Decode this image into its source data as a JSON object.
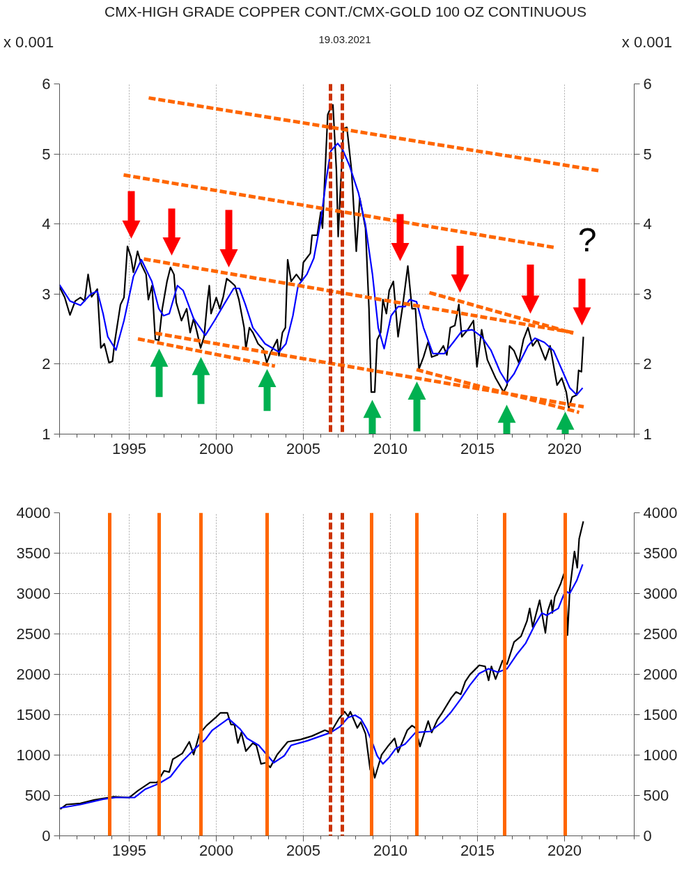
{
  "chart_data": [
    {
      "type": "line",
      "title": "CMX-HIGH GRADE COPPER CONT./CMX-GOLD 100 OZ CONTINUOUS",
      "subtitle": "19.03.2021",
      "ylabel": "x 0.001",
      "y2label": "x 0.001",
      "xlim": [
        1991,
        2024
      ],
      "xticks": [
        1995,
        2000,
        2005,
        2010,
        2015,
        2020
      ],
      "ylim": [
        1,
        6
      ],
      "yticks": [
        1,
        2,
        3,
        4,
        5,
        6
      ],
      "y2lim": [
        1,
        6
      ],
      "y2ticks": [
        1,
        2,
        3,
        4,
        5,
        6
      ],
      "grid": true,
      "series": [
        {
          "color": "#000000",
          "x": [
            1991.0,
            1991.3,
            1991.6,
            1991.9,
            1992.2,
            1992.44,
            1992.64,
            1992.84,
            1993.17,
            1993.37,
            1993.57,
            1993.84,
            1994.04,
            1994.17,
            1994.5,
            1994.7,
            1994.9,
            1995.1,
            1995.24,
            1995.48,
            1995.7,
            1995.97,
            1996.1,
            1996.31,
            1996.5,
            1996.7,
            1996.9,
            1997.17,
            1997.37,
            1997.57,
            1997.7,
            1998.0,
            1998.3,
            1998.5,
            1998.7,
            1998.9,
            1999.1,
            1999.3,
            1999.5,
            1999.6,
            1999.7,
            2000.0,
            2000.2,
            2000.4,
            2000.6,
            2000.8,
            2001.07,
            2001.3,
            2001.6,
            2001.7,
            2001.9,
            2002.1,
            2002.4,
            2002.7,
            2002.9,
            2003.1,
            2003.5,
            2003.6,
            2003.8,
            2003.97,
            2004.1,
            2004.3,
            2004.6,
            2004.9,
            2005.0,
            2005.4,
            2005.5,
            2005.8,
            2006.0,
            2006.1,
            2006.4,
            2006.5,
            2006.7,
            2006.9,
            2007.0,
            2007.3,
            2007.5,
            2007.77,
            2008.04,
            2008.24,
            2008.44,
            2008.57,
            2008.77,
            2008.9,
            2009.1,
            2009.24,
            2009.44,
            2009.57,
            2009.77,
            2009.93,
            2010.17,
            2010.44,
            2010.7,
            2011.0,
            2011.24,
            2011.44,
            2011.64,
            2011.9,
            2012.17,
            2012.37,
            2012.7,
            2013.04,
            2013.24,
            2013.44,
            2013.7,
            2013.93,
            2014.1,
            2014.44,
            2014.77,
            2014.97,
            2015.24,
            2015.57,
            2016.04,
            2016.5,
            2016.7,
            2016.84,
            2017.1,
            2017.37,
            2017.64,
            2017.9,
            2018.17,
            2018.44,
            2018.9,
            2019.17,
            2019.57,
            2019.84,
            2020.1,
            2020.24,
            2020.44,
            2020.7,
            2020.81,
            2020.97,
            2021.08
          ],
          "values": [
            3.1,
            2.95,
            2.7,
            2.9,
            2.95,
            2.9,
            3.28,
            2.96,
            3.07,
            2.23,
            2.29,
            2.02,
            2.04,
            2.32,
            2.85,
            2.95,
            3.68,
            3.53,
            3.31,
            3.61,
            3.42,
            3.28,
            2.92,
            3.12,
            2.35,
            2.34,
            2.79,
            3.18,
            3.38,
            3.28,
            2.88,
            2.62,
            2.79,
            2.45,
            2.65,
            2.45,
            2.23,
            2.39,
            2.92,
            3.12,
            2.72,
            2.95,
            2.79,
            2.96,
            3.22,
            3.18,
            3.12,
            2.92,
            2.52,
            2.22,
            2.52,
            2.45,
            2.29,
            2.22,
            2.02,
            2.15,
            2.35,
            2.12,
            2.45,
            2.52,
            3.49,
            3.18,
            3.28,
            3.18,
            3.45,
            3.58,
            3.84,
            3.84,
            4.17,
            3.94,
            5.56,
            5.62,
            5.7,
            4.76,
            3.82,
            5.36,
            5.38,
            4.76,
            3.61,
            4.37,
            4.11,
            3.94,
            2.79,
            1.6,
            1.6,
            2.35,
            2.45,
            2.92,
            2.72,
            3.05,
            3.18,
            2.39,
            2.82,
            3.4,
            2.79,
            2.79,
            1.93,
            2.1,
            2.32,
            2.1,
            2.13,
            2.26,
            2.13,
            2.52,
            2.55,
            2.85,
            2.39,
            2.49,
            2.62,
            1.96,
            2.49,
            2.06,
            1.8,
            1.6,
            1.7,
            2.26,
            2.19,
            2.02,
            2.35,
            2.52,
            2.26,
            2.35,
            2.06,
            2.26,
            1.7,
            1.8,
            1.6,
            1.37,
            1.53,
            1.56,
            1.91,
            1.89,
            2.39
          ]
        },
        {
          "color": "#0000ff",
          "x": [
            1991.0,
            1991.6,
            1992.2,
            1992.8,
            1993.17,
            1993.5,
            1993.77,
            1994.24,
            1994.7,
            1995.24,
            1995.7,
            1996.3,
            1996.7,
            1996.97,
            1997.3,
            1997.77,
            1998.1,
            1998.7,
            1999.37,
            1999.9,
            2000.44,
            2001.0,
            2001.33,
            2001.67,
            2002.1,
            2002.8,
            2003.6,
            2004.0,
            2004.4,
            2004.7,
            2005.2,
            2005.6,
            2006.0,
            2006.3,
            2006.57,
            2006.97,
            2007.24,
            2007.64,
            2008.17,
            2008.57,
            2008.97,
            2009.3,
            2009.64,
            2010.04,
            2010.44,
            2010.84,
            2011.1,
            2011.5,
            2011.9,
            2012.44,
            2013.1,
            2013.64,
            2014.1,
            2014.7,
            2015.24,
            2015.77,
            2016.3,
            2016.7,
            2017.1,
            2017.5,
            2017.9,
            2018.3,
            2018.84,
            2019.37,
            2019.9,
            2020.3,
            2020.7,
            2021.04
          ],
          "values": [
            3.13,
            2.9,
            2.84,
            3.0,
            3.04,
            2.72,
            2.39,
            2.2,
            2.62,
            3.25,
            3.49,
            3.18,
            2.79,
            2.69,
            2.72,
            3.12,
            3.05,
            2.65,
            2.41,
            2.62,
            2.85,
            3.08,
            3.08,
            2.85,
            2.52,
            2.29,
            2.17,
            2.29,
            2.69,
            3.12,
            3.28,
            3.51,
            4.04,
            4.61,
            5.04,
            5.15,
            5.07,
            4.84,
            4.44,
            3.98,
            3.28,
            2.52,
            2.22,
            2.69,
            2.82,
            2.82,
            2.92,
            2.89,
            2.52,
            2.15,
            2.15,
            2.32,
            2.47,
            2.49,
            2.39,
            2.2,
            1.89,
            1.73,
            1.86,
            2.06,
            2.26,
            2.37,
            2.31,
            2.19,
            1.89,
            1.66,
            1.56,
            1.66
          ]
        },
        {
          "type": "line",
          "color": "#ff6600",
          "line_style": "dashed",
          "x": [
            1996.12,
            2022.0
          ],
          "values": [
            5.8,
            4.76
          ]
        },
        {
          "type": "line",
          "color": "#ff6600",
          "line_style": "dashed",
          "x": [
            1994.68,
            2019.52
          ],
          "values": [
            4.7,
            3.66
          ]
        },
        {
          "type": "line",
          "color": "#ff6600",
          "line_style": "dashed",
          "x": [
            1995.84,
            2020.5
          ],
          "values": [
            3.5,
            2.45
          ]
        },
        {
          "type": "line",
          "color": "#ff6600",
          "line_style": "dashed",
          "x": [
            1996.5,
            2021.1
          ],
          "values": [
            2.44,
            1.39
          ]
        },
        {
          "type": "line",
          "color": "#ff6600",
          "line_style": "dashed",
          "x": [
            1995.5,
            2003.37
          ],
          "values": [
            2.36,
            1.97
          ]
        },
        {
          "type": "line",
          "color": "#ff6600",
          "line_style": "dashed",
          "x": [
            2012.24,
            2020.5
          ],
          "values": [
            3.02,
            2.44
          ]
        },
        {
          "type": "line",
          "color": "#ff6600",
          "line_style": "dashed",
          "x": [
            2011.5,
            2020.84
          ],
          "values": [
            1.92,
            1.31
          ]
        }
      ],
      "ref_lines": [
        {
          "axis": "x",
          "value": 2006.56,
          "color": "#cc3300",
          "line_style": "dashed"
        },
        {
          "axis": "x",
          "value": 2007.24,
          "color": "#cc3300",
          "line_style": "dashed"
        }
      ],
      "annotations": [
        "?"
      ]
    },
    {
      "type": "line",
      "xlim": [
        1991,
        2024
      ],
      "xticks": [
        1995,
        2000,
        2005,
        2010,
        2015,
        2020
      ],
      "ylim": [
        0,
        4000
      ],
      "yticks": [
        0,
        500,
        1000,
        1500,
        2000,
        2500,
        3000,
        3500,
        4000
      ],
      "y2lim": [
        0,
        4000
      ],
      "y2ticks": [
        0,
        500,
        1000,
        1500,
        2000,
        2500,
        3000,
        3500,
        4000
      ],
      "grid": true,
      "series": [
        {
          "color": "#000000",
          "x": [
            1991.04,
            1991.4,
            1992.2,
            1993.0,
            1994.07,
            1995.0,
            1995.5,
            1996.2,
            1996.6,
            1997.0,
            1997.3,
            1997.5,
            1998.05,
            1998.45,
            1998.7,
            1999.04,
            1999.44,
            1999.97,
            2000.24,
            2000.64,
            2000.84,
            2001.04,
            2001.24,
            2001.44,
            2001.7,
            2002.1,
            2002.3,
            2002.57,
            2002.84,
            2003.1,
            2003.5,
            2004.1,
            2004.84,
            2005.5,
            2006.24,
            2006.57,
            2007.04,
            2007.37,
            2007.57,
            2007.7,
            2008.1,
            2008.3,
            2008.57,
            2008.84,
            2008.95,
            2009.1,
            2009.5,
            2009.9,
            2010.24,
            2010.44,
            2010.97,
            2011.24,
            2011.44,
            2011.7,
            2012.17,
            2012.37,
            2012.7,
            2012.97,
            2013.5,
            2013.77,
            2014.04,
            2014.3,
            2014.57,
            2014.84,
            2015.1,
            2015.44,
            2015.64,
            2015.8,
            2016.04,
            2016.44,
            2016.7,
            2017.1,
            2017.5,
            2017.84,
            2018.0,
            2018.17,
            2018.57,
            2018.9,
            2019.04,
            2019.24,
            2019.3,
            2019.44,
            2019.77,
            2019.97,
            2020.04,
            2020.17,
            2020.3,
            2020.57,
            2020.73,
            2020.84,
            2020.95,
            2021.08
          ],
          "values": [
            330,
            388,
            402,
            445,
            483,
            474,
            560,
            661,
            661,
            805,
            790,
            948,
            1020,
            1164,
            1006,
            1264,
            1365,
            1466,
            1523,
            1523,
            1379,
            1379,
            1149,
            1279,
            1049,
            1149,
            1121,
            891,
            905,
            848,
            1006,
            1164,
            1193,
            1236,
            1308,
            1279,
            1451,
            1537,
            1480,
            1537,
            1336,
            1408,
            1264,
            819,
            905,
            718,
            1006,
            1121,
            1207,
            1034,
            1308,
            1365,
            1336,
            1106,
            1422,
            1279,
            1437,
            1523,
            1710,
            1782,
            1753,
            1911,
            1997,
            2055,
            2112,
            2098,
            1925,
            2098,
            1940,
            2170,
            2127,
            2400,
            2471,
            2658,
            2816,
            2586,
            2917,
            2514,
            2787,
            2917,
            2759,
            2960,
            3118,
            3247,
            3190,
            2486,
            3046,
            3521,
            3319,
            3679,
            3779,
            3894
          ]
        },
        {
          "color": "#0000ff",
          "x": [
            1991.04,
            1992.2,
            1993.5,
            1994.2,
            1995.3,
            1995.9,
            1996.7,
            1997.37,
            1998.04,
            1998.7,
            1999.37,
            1999.77,
            2000.7,
            2001.37,
            2001.77,
            2002.44,
            2003.3,
            2003.9,
            2004.3,
            2005.24,
            2006.57,
            2007.1,
            2007.57,
            2007.97,
            2008.3,
            2008.64,
            2008.97,
            2009.24,
            2009.57,
            2009.9,
            2010.3,
            2010.84,
            2011.44,
            2012.3,
            2012.97,
            2013.5,
            2014.04,
            2014.57,
            2015.1,
            2015.64,
            2016.17,
            2016.7,
            2017.24,
            2017.77,
            2018.3,
            2018.7,
            2018.97,
            2019.64,
            2020.04,
            2020.3,
            2020.7,
            2021.04
          ],
          "values": [
            345,
            388,
            454,
            474,
            474,
            575,
            647,
            733,
            920,
            1063,
            1193,
            1308,
            1451,
            1322,
            1207,
            1121,
            905,
            991,
            1121,
            1178,
            1279,
            1351,
            1466,
            1494,
            1451,
            1322,
            1149,
            991,
            891,
            963,
            1078,
            1135,
            1279,
            1293,
            1408,
            1537,
            1695,
            1868,
            2011,
            2069,
            2026,
            2069,
            2241,
            2385,
            2615,
            2759,
            2730,
            2816,
            3032,
            3003,
            3161,
            3362
          ]
        }
      ],
      "ref_lines": [
        {
          "axis": "x",
          "value": 2006.56,
          "color": "#cc3300",
          "line_style": "dashed"
        },
        {
          "axis": "x",
          "value": 2007.24,
          "color": "#cc3300",
          "line_style": "dashed"
        },
        {
          "axis": "x",
          "value": 1993.88,
          "color": "#ff6600"
        },
        {
          "axis": "x",
          "value": 1996.72,
          "color": "#ff6600"
        },
        {
          "axis": "x",
          "value": 1999.12,
          "color": "#ff6600"
        },
        {
          "axis": "x",
          "value": 2002.92,
          "color": "#ff6600"
        },
        {
          "axis": "x",
          "value": 2008.92,
          "color": "#ff6600"
        },
        {
          "axis": "x",
          "value": 2011.52,
          "color": "#ff6600"
        },
        {
          "axis": "x",
          "value": 2016.56,
          "color": "#ff6600"
        },
        {
          "axis": "x",
          "value": 2020.04,
          "color": "#ff6600"
        }
      ]
    }
  ]
}
